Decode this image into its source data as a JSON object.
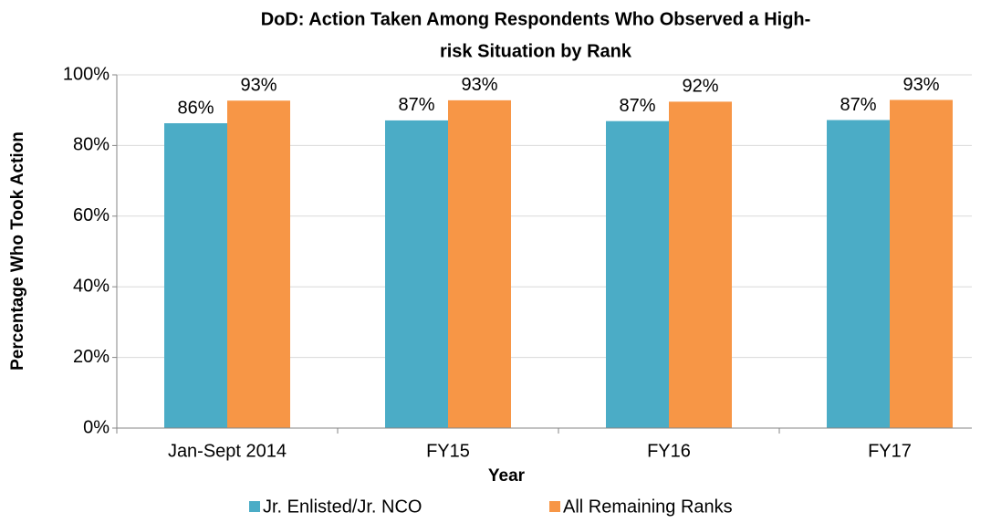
{
  "chart_data": {
    "type": "bar",
    "title": [
      "DoD: Action Taken Among Respondents Who Observed a High-",
      "risk Situation by Rank"
    ],
    "x_label": "Year",
    "y_label": "Percentage Who Took Action",
    "categories": [
      "Jan-Sept 2014",
      "FY15",
      "FY16",
      "FY17"
    ],
    "series": [
      {
        "name": "Jr. Enlisted/Jr. NCO",
        "color": "#4bacc6",
        "values": [
          86.3,
          87.1,
          86.9,
          87.2
        ],
        "value_labels": [
          "86%",
          "87%",
          "87%",
          "87%"
        ]
      },
      {
        "name": "All Remaining Ranks",
        "color": "#f79646",
        "values": [
          92.7,
          92.8,
          92.4,
          92.9
        ],
        "value_labels": [
          "93%",
          "93%",
          "92%",
          "93%"
        ]
      }
    ],
    "ylim": [
      0,
      100
    ],
    "yticks": [
      {
        "value": 0,
        "label": "0%"
      },
      {
        "value": 20,
        "label": "20%"
      },
      {
        "value": 40,
        "label": "40%"
      },
      {
        "value": 60,
        "label": "60%"
      },
      {
        "value": 80,
        "label": "80%"
      },
      {
        "value": 100,
        "label": "100%"
      }
    ],
    "grid": true,
    "legend": "bottom"
  }
}
